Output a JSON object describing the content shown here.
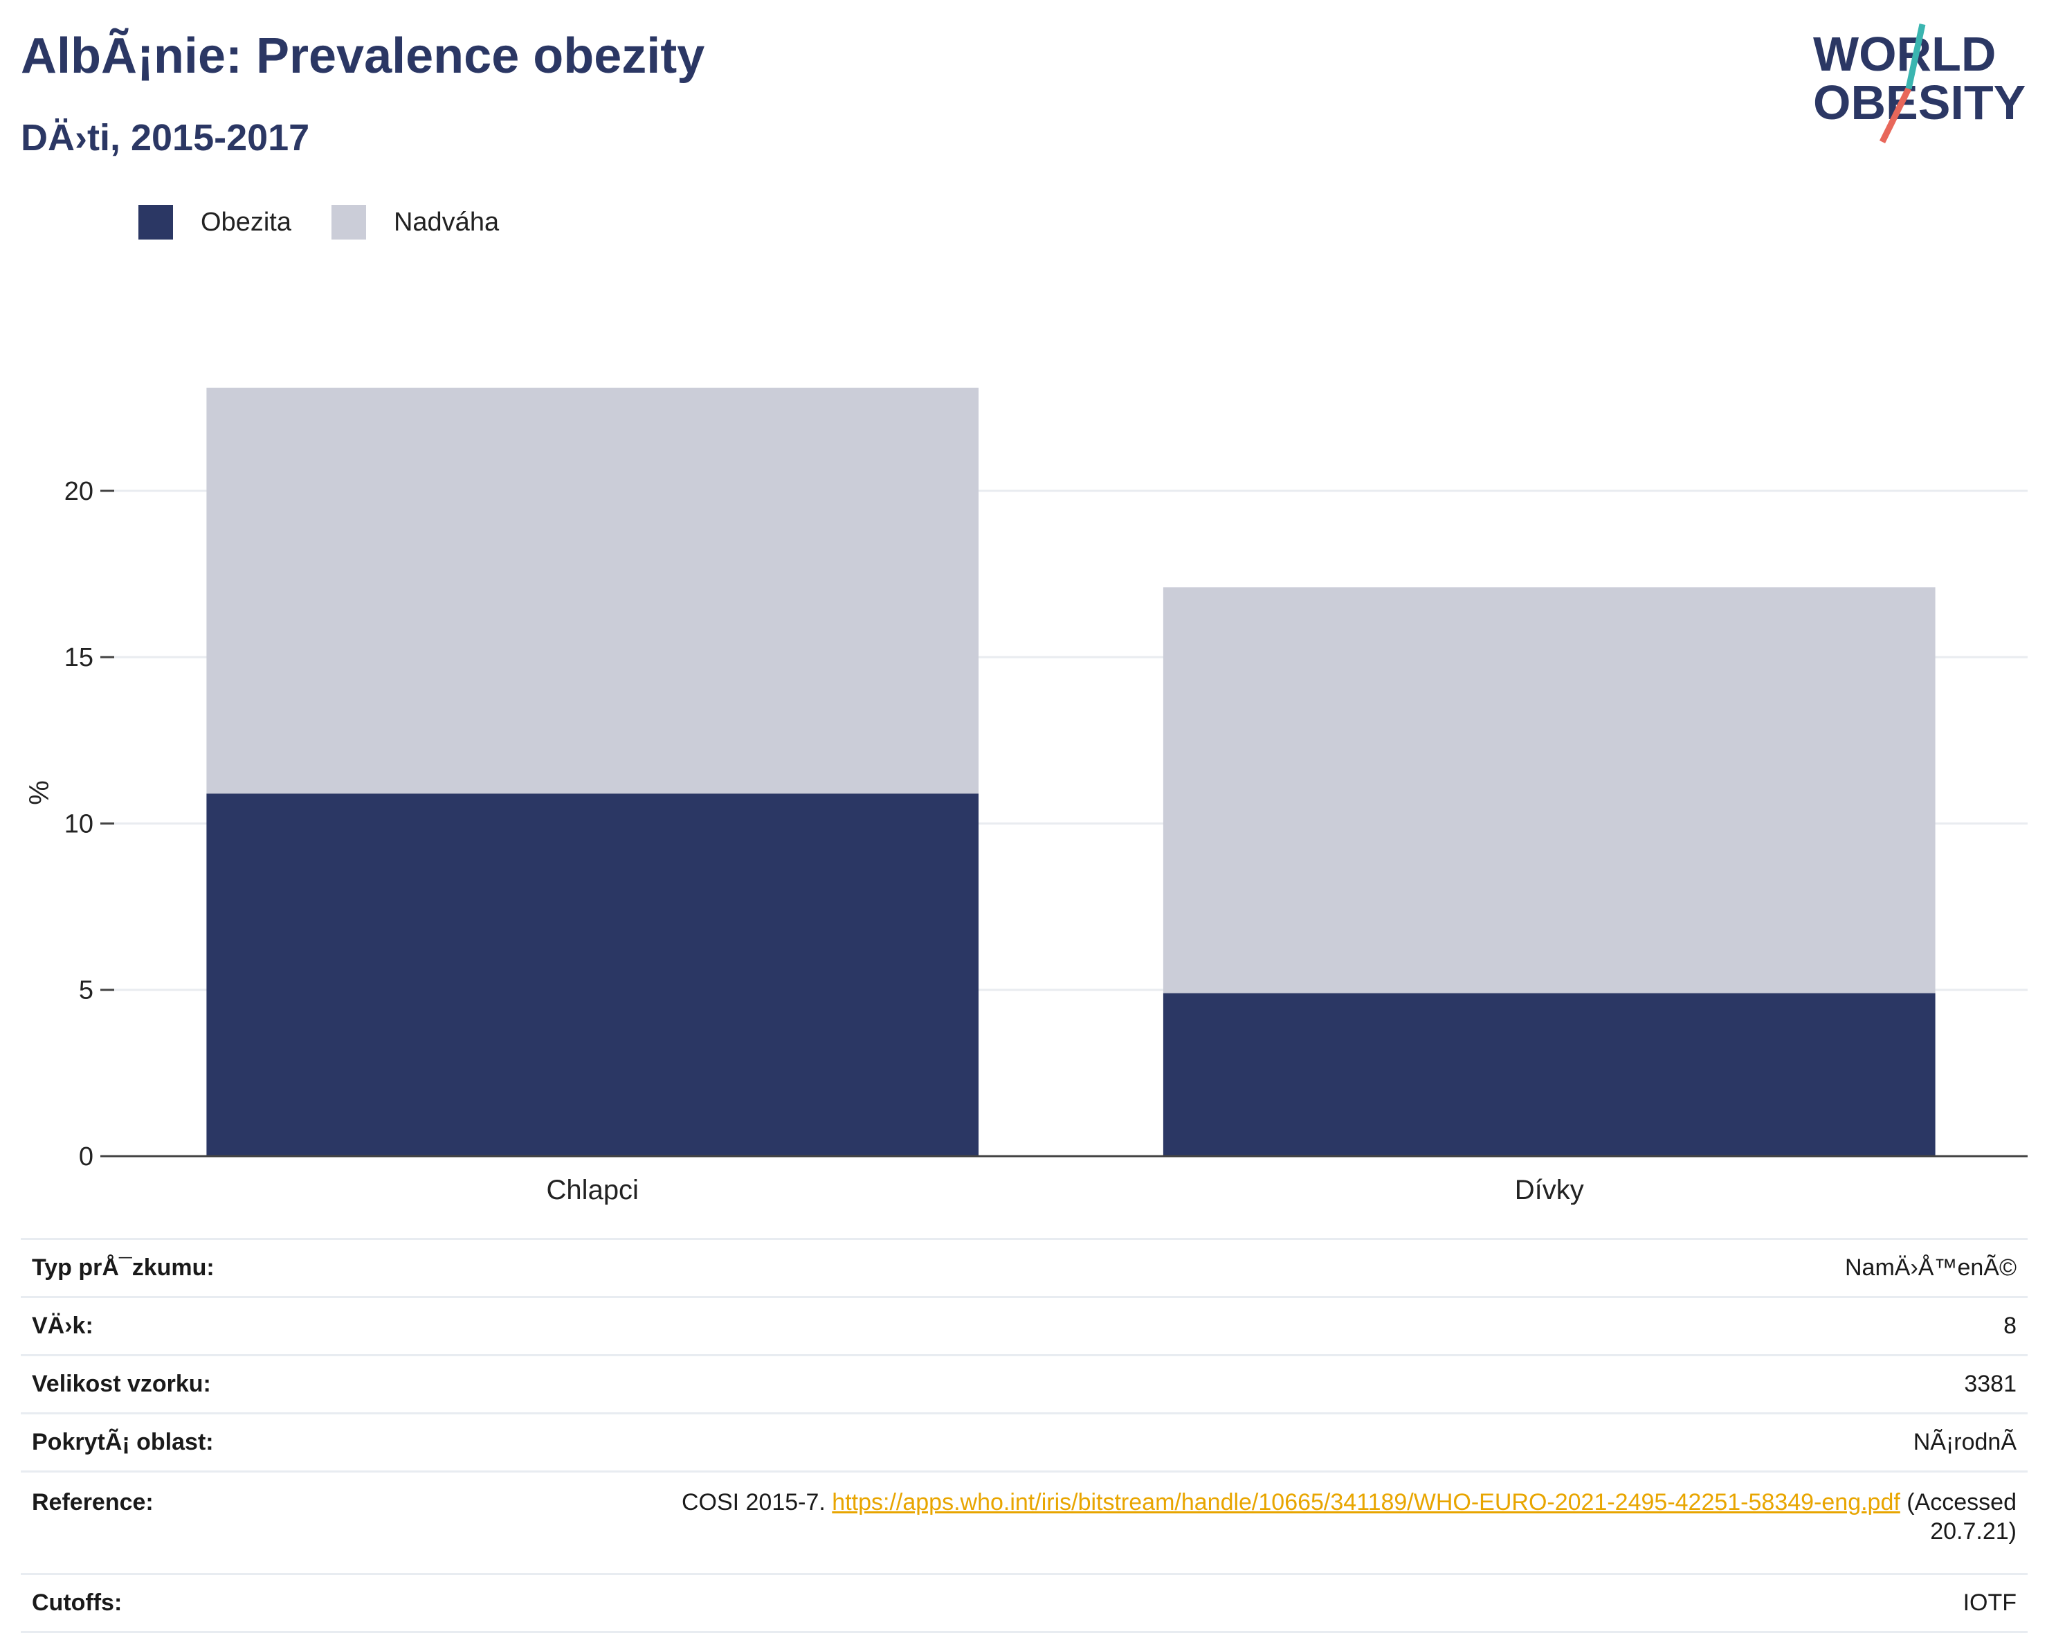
{
  "header": {
    "title": "AlbÃ¡nie: Prevalence obezity",
    "subtitle": "DÄ›ti, 2015-2017",
    "logo_text": [
      "WORLD",
      "OBESITY"
    ]
  },
  "legend": [
    {
      "label": "Obezita",
      "color": "#2b3764"
    },
    {
      "label": "Nadváha",
      "color": "#cbcdd8"
    }
  ],
  "chart_data": {
    "type": "bar",
    "stacked": true,
    "categories": [
      "Chlapci",
      "Dívky"
    ],
    "series": [
      {
        "name": "Obezita",
        "values": [
          10.9,
          4.9
        ],
        "color": "#2b3764"
      },
      {
        "name": "Nadváha",
        "values": [
          12.2,
          12.2
        ],
        "color": "#cbcdd8"
      }
    ],
    "ylabel": "%",
    "ylim": [
      0,
      23.1
    ],
    "yticks": [
      0,
      5,
      10,
      15,
      20
    ],
    "grid": true,
    "legend_position": "top-left"
  },
  "info": {
    "rows": [
      {
        "key": "Typ prÅ¯zkumu:",
        "value": "NamÄ›Å™enÃ©"
      },
      {
        "key": "VÄ›k:",
        "value": "8"
      },
      {
        "key": "Velikost vzorku:",
        "value": "3381"
      },
      {
        "key": "PokrytÃ¡ oblast:",
        "value": "NÃ¡rodnÃ"
      }
    ],
    "reference": {
      "key": "Reference:",
      "prefix": "COSI 2015-7.",
      "link": "https://apps.who.int/iris/bitstream/handle/10665/341189/WHO-EURO-2021-2495-42251-58349-eng.pdf",
      "suffix_1": "(Accessed",
      "suffix_2": "20.7.21)"
    },
    "cutoffs": {
      "key": "Cutoffs:",
      "value": "IOTF"
    }
  }
}
